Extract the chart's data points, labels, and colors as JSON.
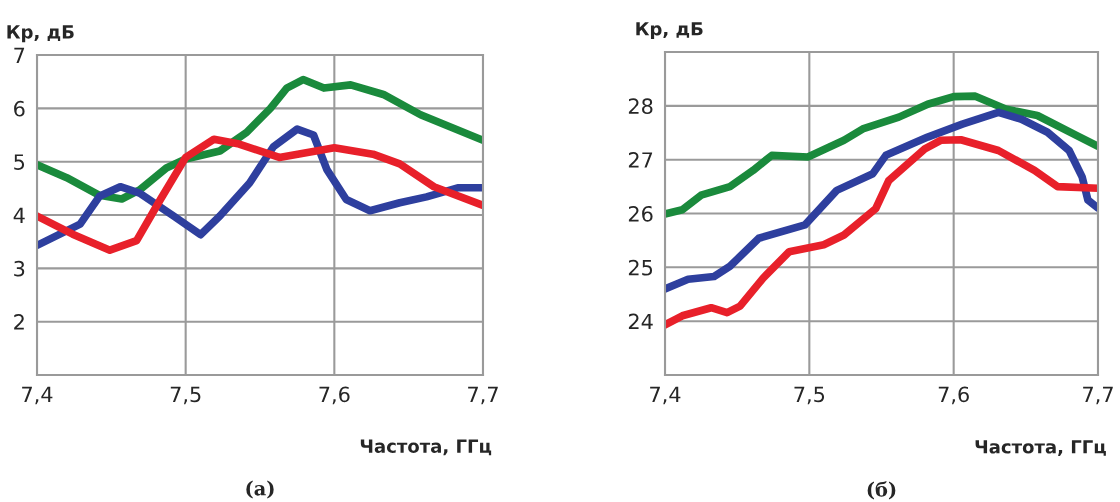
{
  "chart_data": [
    {
      "type": "line",
      "ylabel": "Кр, дБ",
      "xlabel": "Частота, ГГц",
      "annotations": [
        "(а)"
      ],
      "xlim": [
        7.4,
        7.7
      ],
      "xticks": [
        {
          "value": 7.4,
          "label": "7,4"
        },
        {
          "value": 7.5,
          "label": "7,5"
        },
        {
          "value": 7.6,
          "label": "7,6"
        },
        {
          "value": 7.7,
          "label": "7,7"
        }
      ],
      "ylim": [
        1,
        7
      ],
      "yticks": [
        2,
        3,
        4,
        5,
        6,
        7
      ],
      "grid": true,
      "line_style": "solid",
      "marker": "none",
      "series": [
        {
          "color": "#1a8a3c",
          "x": [
            7.4,
            7.42,
            7.442,
            7.457,
            7.469,
            7.487,
            7.5,
            7.523,
            7.541,
            7.557,
            7.568,
            7.579,
            7.593,
            7.611,
            7.633,
            7.658,
            7.7
          ],
          "values": [
            4.94,
            4.7,
            4.37,
            4.3,
            4.47,
            4.88,
            5.05,
            5.2,
            5.55,
            6.0,
            6.38,
            6.54,
            6.38,
            6.44,
            6.26,
            5.88,
            5.4
          ]
        },
        {
          "color": "#2e3f9e",
          "x": [
            7.4,
            7.429,
            7.442,
            7.456,
            7.469,
            7.492,
            7.51,
            7.523,
            7.543,
            7.559,
            7.575,
            7.586,
            7.595,
            7.608,
            7.624,
            7.644,
            7.662,
            7.683,
            7.7
          ],
          "values": [
            3.43,
            3.83,
            4.35,
            4.53,
            4.41,
            3.98,
            3.63,
            3.98,
            4.6,
            5.28,
            5.61,
            5.5,
            4.85,
            4.29,
            4.08,
            4.23,
            4.34,
            4.51,
            4.51
          ]
        },
        {
          "color": "#e8202a",
          "x": [
            7.4,
            7.424,
            7.449,
            7.467,
            7.483,
            7.5,
            7.519,
            7.536,
            7.563,
            7.6,
            7.626,
            7.644,
            7.667,
            7.7
          ],
          "values": [
            3.98,
            3.64,
            3.34,
            3.52,
            4.29,
            5.08,
            5.42,
            5.33,
            5.08,
            5.26,
            5.14,
            4.96,
            4.53,
            4.18
          ]
        }
      ]
    },
    {
      "type": "line",
      "ylabel": "Кр, дБ",
      "xlabel": "Частота, ГГц",
      "annotations": [
        "(б)"
      ],
      "xlim": [
        7.4,
        7.7
      ],
      "xticks": [
        {
          "value": 7.4,
          "label": "7,4"
        },
        {
          "value": 7.5,
          "label": "7,5"
        },
        {
          "value": 7.6,
          "label": "7,6"
        },
        {
          "value": 7.7,
          "label": "7,7"
        }
      ],
      "ylim": [
        23,
        29
      ],
      "yticks": [
        24,
        25,
        26,
        27,
        28
      ],
      "grid": true,
      "line_style": "solid",
      "marker": "none",
      "series": [
        {
          "color": "#1a8a3c",
          "x": [
            7.4,
            7.412,
            7.425,
            7.445,
            7.461,
            7.474,
            7.499,
            7.524,
            7.537,
            7.562,
            7.582,
            7.6,
            7.615,
            7.636,
            7.658,
            7.685,
            7.7
          ],
          "values": [
            25.99,
            26.07,
            26.34,
            26.5,
            26.8,
            27.08,
            27.05,
            27.36,
            27.57,
            27.79,
            28.03,
            28.17,
            28.18,
            27.94,
            27.82,
            27.45,
            27.25
          ]
        },
        {
          "color": "#2e3f9e",
          "x": [
            7.4,
            7.416,
            7.434,
            7.445,
            7.465,
            7.497,
            7.519,
            7.544,
            7.553,
            7.582,
            7.606,
            7.631,
            7.647,
            7.665,
            7.68,
            7.689,
            7.693,
            7.7
          ],
          "values": [
            24.6,
            24.78,
            24.83,
            25.02,
            25.54,
            25.79,
            26.43,
            26.74,
            27.08,
            27.42,
            27.66,
            27.88,
            27.75,
            27.51,
            27.17,
            26.68,
            26.25,
            26.1
          ]
        },
        {
          "color": "#e8202a",
          "x": [
            7.4,
            7.412,
            7.432,
            7.443,
            7.452,
            7.468,
            7.486,
            7.51,
            7.524,
            7.546,
            7.555,
            7.58,
            7.591,
            7.605,
            7.631,
            7.656,
            7.672,
            7.7
          ],
          "values": [
            23.93,
            24.1,
            24.25,
            24.16,
            24.28,
            24.8,
            25.29,
            25.42,
            25.6,
            26.09,
            26.61,
            27.2,
            27.36,
            27.37,
            27.17,
            26.8,
            26.5,
            26.47
          ]
        }
      ]
    }
  ]
}
